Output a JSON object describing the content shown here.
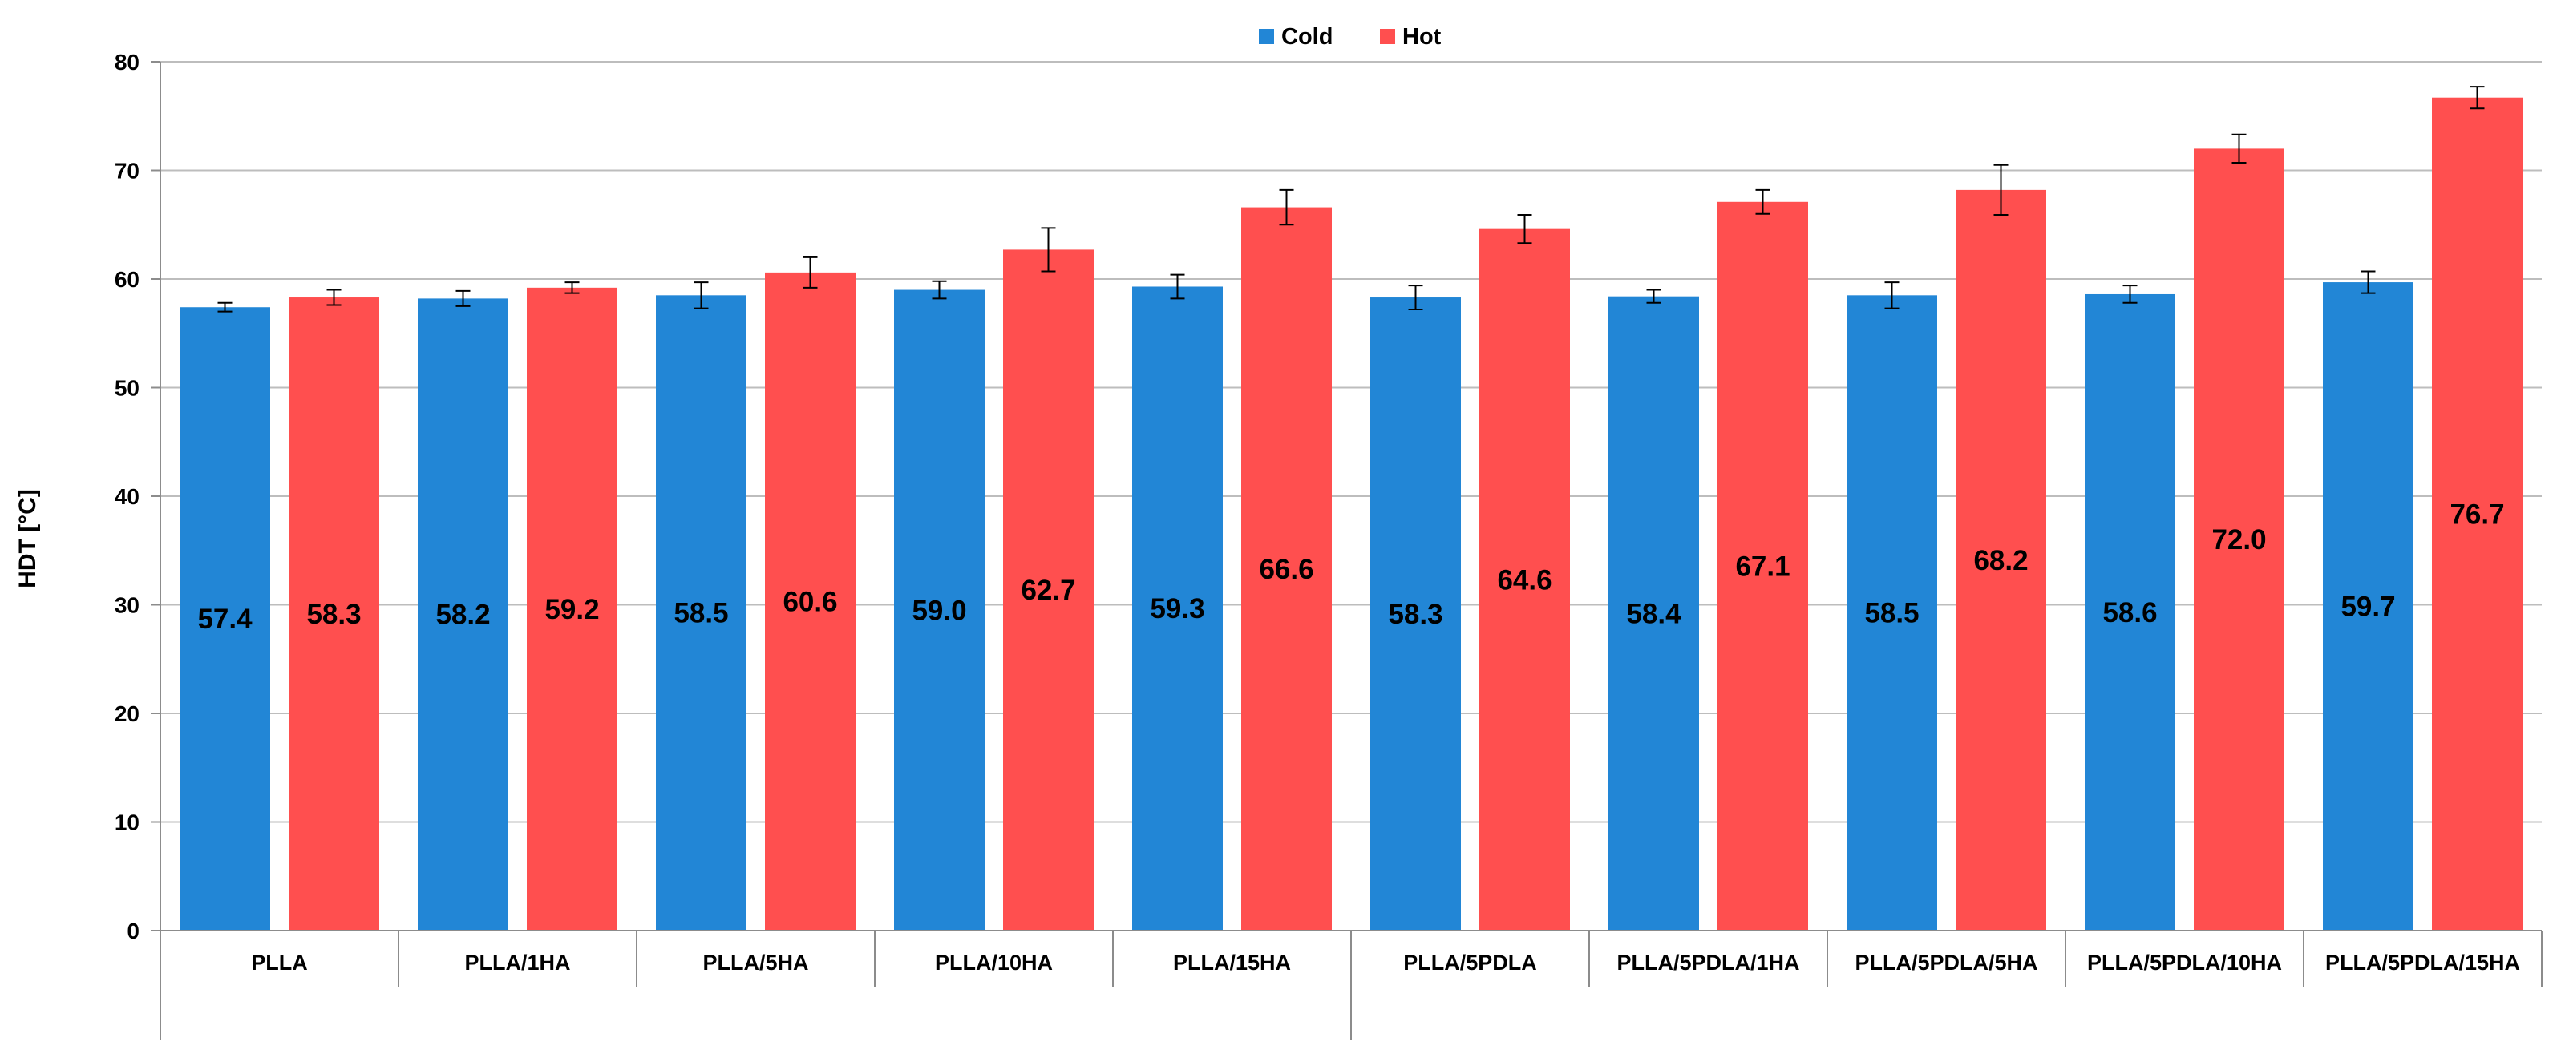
{
  "chart_data": {
    "type": "bar",
    "title": "",
    "xlabel": "",
    "ylabel": "HDT [°C]",
    "ylim": [
      0,
      80
    ],
    "yticks": [
      0,
      10,
      20,
      30,
      40,
      50,
      60,
      70,
      80
    ],
    "grid": "horizontal",
    "legend_position": "top-center",
    "categories": [
      "PLLA",
      "PLLA/1HA",
      "PLLA/5HA",
      "PLLA/10HA",
      "PLLA/15HA",
      "PLLA/5PDLA",
      "PLLA/5PDLA/1HA",
      "PLLA/5PDLA/5HA",
      "PLLA/5PDLA/10HA",
      "PLLA/5PDLA/15HA"
    ],
    "category_groups": [
      {
        "categories": [
          "PLLA",
          "PLLA/1HA",
          "PLLA/5HA",
          "PLLA/10HA",
          "PLLA/15HA"
        ]
      },
      {
        "categories": [
          "PLLA/5PDLA",
          "PLLA/5PDLA/1HA",
          "PLLA/5PDLA/5HA",
          "PLLA/5PDLA/10HA",
          "PLLA/5PDLA/15HA"
        ]
      }
    ],
    "series": [
      {
        "name": "Cold",
        "color": "#2286d6",
        "values": [
          57.4,
          58.2,
          58.5,
          59.0,
          59.3,
          58.3,
          58.4,
          58.5,
          58.6,
          59.7
        ],
        "labels": [
          "57.4",
          "58.2",
          "58.5",
          "59.0",
          "59.3",
          "58.3",
          "58.4",
          "58.5",
          "58.6",
          "59.7"
        ],
        "errors": [
          0.4,
          0.7,
          1.2,
          0.8,
          1.1,
          1.1,
          0.6,
          1.2,
          0.8,
          1.0
        ]
      },
      {
        "name": "Hot",
        "color": "#ff4f4f",
        "values": [
          58.3,
          59.2,
          60.6,
          62.7,
          66.6,
          64.6,
          67.1,
          68.2,
          72.0,
          76.7
        ],
        "labels": [
          "58.3",
          "59.2",
          "60.6",
          "62.7",
          "66.6",
          "64.6",
          "67.1",
          "68.2",
          "72.0",
          "76.7"
        ],
        "errors": [
          0.7,
          0.5,
          1.4,
          2.0,
          1.6,
          1.3,
          1.1,
          2.3,
          1.3,
          1.0
        ]
      }
    ]
  }
}
